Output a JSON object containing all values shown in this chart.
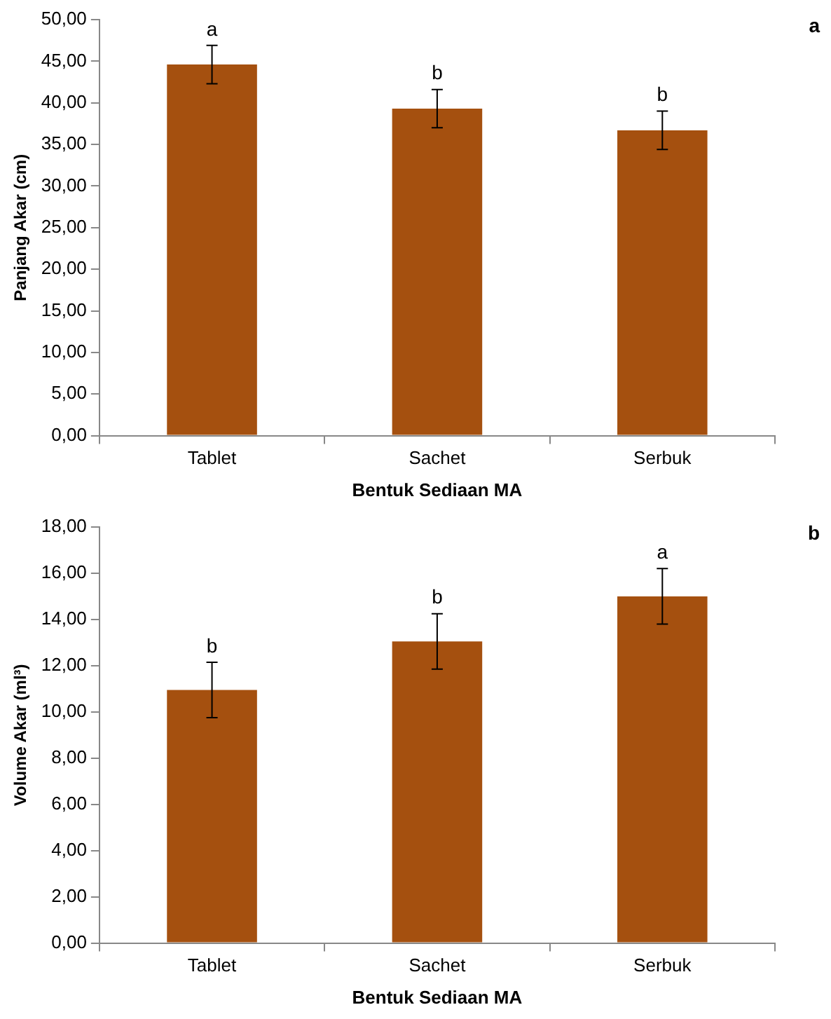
{
  "chart_data": [
    {
      "type": "bar",
      "xlabel": "Bentuk Sediaan MA",
      "ylabel": "Panjang Akar (cm)",
      "categories": [
        "Tablet",
        "Sachet",
        "Serbuk"
      ],
      "values": [
        44.6,
        39.3,
        36.7
      ],
      "errors": [
        2.3,
        2.3,
        2.3
      ],
      "color": "#a5500f",
      "ylim": [
        0,
        50
      ],
      "yticks": [
        {
          "value": 0,
          "label": "0,00"
        },
        {
          "value": 5,
          "label": "5,00"
        },
        {
          "value": 10,
          "label": "10,00"
        },
        {
          "value": 15,
          "label": "15,00"
        },
        {
          "value": 20,
          "label": "20,00"
        },
        {
          "value": 25,
          "label": "25,00"
        },
        {
          "value": 30,
          "label": "30,00"
        },
        {
          "value": 35,
          "label": "35,00"
        },
        {
          "value": 40,
          "label": "40,00"
        },
        {
          "value": 45,
          "label": "45,00"
        },
        {
          "value": 50,
          "label": "50,00"
        }
      ],
      "grid": false,
      "legend": false,
      "annotations": [
        {
          "text": "a",
          "x": "Tablet",
          "y": 46.9
        },
        {
          "text": "b",
          "x": "Sachet",
          "y": 41.6
        },
        {
          "text": "b",
          "x": "Serbuk",
          "y": 39.0
        },
        "a"
      ]
    },
    {
      "type": "bar",
      "xlabel": "Bentuk Sediaan MA",
      "ylabel": "Volume Akar (ml³)",
      "categories": [
        "Tablet",
        "Sachet",
        "Serbuk"
      ],
      "values": [
        10.95,
        13.05,
        15.0
      ],
      "errors": [
        1.2,
        1.2,
        1.2
      ],
      "color": "#a5500f",
      "ylim": [
        0,
        18
      ],
      "yticks": [
        {
          "value": 0,
          "label": "0,00"
        },
        {
          "value": 2,
          "label": "2,00"
        },
        {
          "value": 4,
          "label": "4,00"
        },
        {
          "value": 6,
          "label": "6,00"
        },
        {
          "value": 8,
          "label": "8,00"
        },
        {
          "value": 10,
          "label": "10,00"
        },
        {
          "value": 12,
          "label": "12,00"
        },
        {
          "value": 14,
          "label": "14,00"
        },
        {
          "value": 16,
          "label": "16,00"
        },
        {
          "value": 18,
          "label": "18,00"
        }
      ],
      "grid": false,
      "legend": false,
      "annotations": [
        {
          "text": "b",
          "x": "Tablet",
          "y": 12.15
        },
        {
          "text": "b",
          "x": "Sachet",
          "y": 14.25
        },
        {
          "text": "a",
          "x": "Serbuk",
          "y": 16.2
        },
        "b"
      ]
    }
  ]
}
